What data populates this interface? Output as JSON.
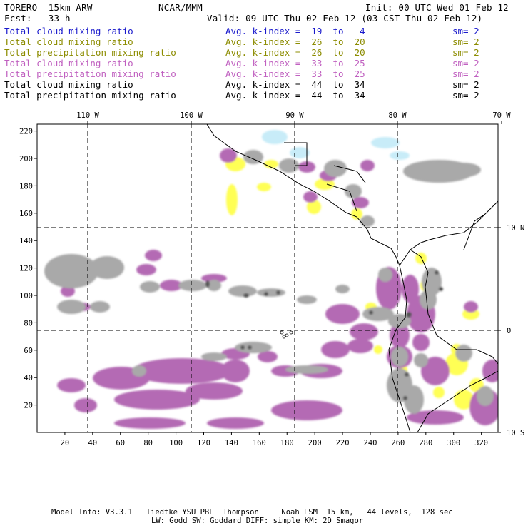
{
  "header": {
    "model": "TORERO  15km ARW",
    "org": "NCAR/MMM",
    "init": "Init: 00 UTC Wed 01 Feb 12",
    "fcst": "Fcst:   33 h",
    "valid": "Valid: 09 UTC Thu 02 Feb 12 (03 CST Thu 02 Feb 12)"
  },
  "legend": [
    {
      "field": "Total cloud mixing ratio",
      "kindex": "Avg. k-index =  19  to   4",
      "sm": "sm= 2",
      "color": "#1a1acc"
    },
    {
      "field": "Total cloud mixing ratio",
      "kindex": "Avg. k-index =  26  to  20",
      "sm": "sm= 2",
      "color": "#8c8c00"
    },
    {
      "field": "Total precipitation mixing ratio",
      "kindex": "Avg. k-index =  26  to  20",
      "sm": "sm= 2",
      "color": "#8c8c00"
    },
    {
      "field": "Total cloud mixing ratio",
      "kindex": "Avg. k-index =  33  to  25",
      "sm": "sm= 2",
      "color": "#c060c0"
    },
    {
      "field": "Total precipitation mixing ratio",
      "kindex": "Avg. k-index =  33  to  25",
      "sm": "sm= 2",
      "color": "#c060c0"
    },
    {
      "field": "Total cloud mixing ratio",
      "kindex": "Avg. k-index =  44  to  34",
      "sm": "sm= 2",
      "color": "#000000"
    },
    {
      "field": "Total precipitation mixing ratio",
      "kindex": "Avg. k-index =  44  to  34",
      "sm": "sm= 2",
      "color": "#000000"
    }
  ],
  "map": {
    "lon_labels": [
      "110 W",
      "100 W",
      "90 W",
      "80 W",
      "70 W"
    ],
    "lat_labels": [
      "10 N",
      "0",
      "10 S"
    ],
    "x_ticks": [
      "20",
      "40",
      "60",
      "80",
      "100",
      "120",
      "140",
      "160",
      "180",
      "200",
      "220",
      "240",
      "260",
      "280",
      "300",
      "320"
    ],
    "y_ticks": [
      "20",
      "40",
      "60",
      "80",
      "100",
      "120",
      "140",
      "160",
      "180",
      "200",
      "220"
    ],
    "colors": {
      "gray": "#a9a9a9",
      "dark_gray": "#555555",
      "purple": "#b46ab4",
      "yellow": "#ffff55",
      "cyan": "#c8ecf8",
      "coast": "#000000"
    }
  },
  "footer": {
    "line1": "Model Info: V3.3.1   Tiedtke YSU PBL  Thompson     Noah LSM  15 km,   44 levels,  128 sec",
    "line2": "LW: Godd SW: Goddard DIFF: simple KM: 2D Smagor"
  }
}
